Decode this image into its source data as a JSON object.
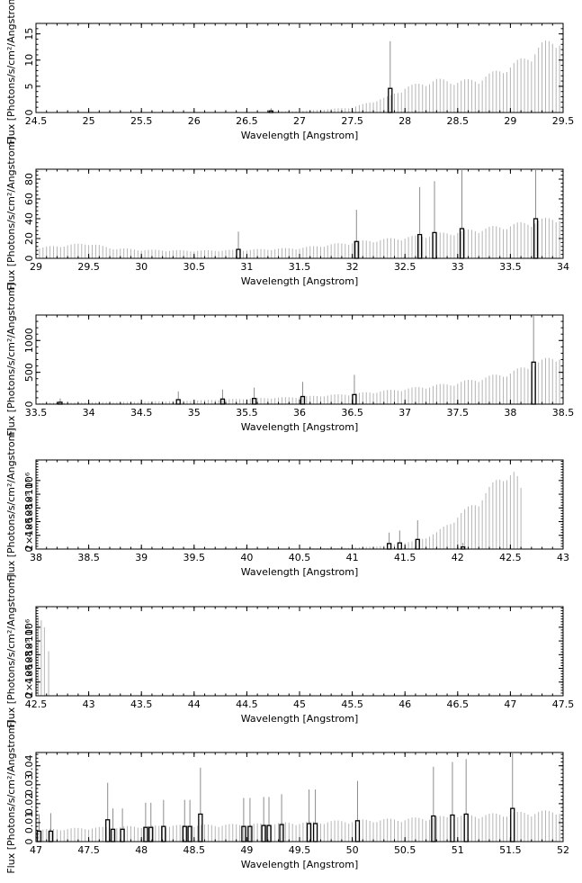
{
  "chart_data": [
    {
      "type": "bar",
      "xlabel": "Wavelength [Angstrom]",
      "ylabel": "Flux [Photons/s/cm²/Angstrom]",
      "xlim": [
        24.5,
        29.5
      ],
      "ylim": [
        0,
        17
      ],
      "xticks": [
        "24.5",
        "25",
        "25.5",
        "26",
        "26.5",
        "27",
        "27.5",
        "28",
        "28.5",
        "29",
        "29.5"
      ],
      "xtick_values": [
        24.5,
        25,
        25.5,
        26,
        26.5,
        27,
        27.5,
        28,
        28.5,
        29,
        29.5
      ],
      "yticks": [
        "0",
        "5",
        "10",
        "15"
      ],
      "ytick_values": [
        0,
        5,
        10,
        15
      ],
      "background_envelope": [
        [
          24.5,
          0
        ],
        [
          26.5,
          0
        ],
        [
          27.0,
          0.3
        ],
        [
          27.5,
          1.0
        ],
        [
          27.85,
          3.2
        ],
        [
          28.0,
          5.0
        ],
        [
          28.2,
          6.0
        ],
        [
          28.3,
          6.5
        ],
        [
          28.5,
          6.2
        ],
        [
          28.7,
          6.6
        ],
        [
          28.85,
          8.0
        ],
        [
          29.0,
          9.3
        ],
        [
          29.15,
          11.0
        ],
        [
          29.3,
          13.5
        ],
        [
          29.5,
          15.0
        ]
      ],
      "bars": [
        {
          "x": 26.73,
          "y": 0.3,
          "err": 0.5
        },
        {
          "x": 27.86,
          "y": 4.6,
          "err": 9.0
        }
      ]
    },
    {
      "type": "bar",
      "xlabel": "Wavelength [Angstrom]",
      "ylabel": "Flux [Photons/s/cm²/Angstrom]",
      "xlim": [
        29,
        34
      ],
      "ylim": [
        0,
        90
      ],
      "xticks": [
        "29",
        "29.5",
        "30",
        "30.5",
        "31",
        "31.5",
        "32",
        "32.5",
        "33",
        "33.5",
        "34"
      ],
      "xtick_values": [
        29,
        29.5,
        30,
        30.5,
        31,
        31.5,
        32,
        32.5,
        33,
        33.5,
        34
      ],
      "yticks": [
        "0",
        "20",
        "40",
        "60",
        "80"
      ],
      "ytick_values": [
        0,
        20,
        40,
        60,
        80
      ],
      "background_envelope": [
        [
          29.0,
          11
        ],
        [
          29.3,
          14
        ],
        [
          29.5,
          16
        ],
        [
          29.7,
          11
        ],
        [
          30.0,
          9
        ],
        [
          30.5,
          8
        ],
        [
          31.0,
          9
        ],
        [
          31.5,
          11
        ],
        [
          32.0,
          17
        ],
        [
          32.5,
          22
        ],
        [
          33.0,
          28
        ],
        [
          33.5,
          35
        ],
        [
          34.0,
          44
        ]
      ],
      "bars": [
        {
          "x": 30.92,
          "y": 9,
          "err": 18
        },
        {
          "x": 32.04,
          "y": 17,
          "err": 32
        },
        {
          "x": 32.64,
          "y": 24,
          "err": 48
        },
        {
          "x": 32.78,
          "y": 26,
          "err": 52
        },
        {
          "x": 33.04,
          "y": 30,
          "err": 61
        },
        {
          "x": 33.74,
          "y": 40,
          "err": 80
        }
      ]
    },
    {
      "type": "bar",
      "xlabel": "Wavelength [Angstrom]",
      "ylabel": "Flux [Photons/s/cm²/Angstrom]",
      "xlim": [
        33.5,
        38.5
      ],
      "ylim": [
        0,
        1400
      ],
      "xticks": [
        "33.5",
        "34",
        "34.5",
        "35",
        "35.5",
        "36",
        "36.5",
        "37",
        "37.5",
        "38",
        "38.5"
      ],
      "xtick_values": [
        33.5,
        34,
        34.5,
        35,
        35.5,
        36,
        36.5,
        37,
        37.5,
        38,
        38.5
      ],
      "yticks": [
        "0",
        "500",
        "1000"
      ],
      "ytick_values": [
        0,
        500,
        1000
      ],
      "background_envelope": [
        [
          33.5,
          20
        ],
        [
          34.0,
          30
        ],
        [
          34.5,
          40
        ],
        [
          35.0,
          60
        ],
        [
          35.5,
          90
        ],
        [
          36.0,
          120
        ],
        [
          36.5,
          170
        ],
        [
          37.0,
          250
        ],
        [
          37.5,
          350
        ],
        [
          38.0,
          520
        ],
        [
          38.5,
          830
        ]
      ],
      "bars": [
        {
          "x": 33.73,
          "y": 30,
          "err": 60
        },
        {
          "x": 34.85,
          "y": 70,
          "err": 130
        },
        {
          "x": 35.27,
          "y": 80,
          "err": 150
        },
        {
          "x": 35.57,
          "y": 90,
          "err": 170
        },
        {
          "x": 36.03,
          "y": 120,
          "err": 230
        },
        {
          "x": 36.52,
          "y": 150,
          "err": 310
        },
        {
          "x": 38.22,
          "y": 660,
          "err": 1320
        }
      ]
    },
    {
      "type": "bar",
      "xlabel": "Wavelength [Angstrom]",
      "ylabel": "Flux [Photons/s/cm²/Angstrom]",
      "xlim": [
        38,
        43
      ],
      "ylim": [
        0,
        1300000
      ],
      "xticks": [
        "38",
        "38.5",
        "39",
        "39.5",
        "40",
        "40.5",
        "41",
        "41.5",
        "42",
        "42.5",
        "43"
      ],
      "xtick_values": [
        38,
        38.5,
        39,
        39.5,
        40,
        40.5,
        41,
        41.5,
        42,
        42.5,
        43
      ],
      "yticks": [
        "0",
        "2×10⁵",
        "4×10⁵",
        "6×10⁵",
        "8×10⁵",
        "10⁶"
      ],
      "ytick_values": [
        0,
        200000,
        400000,
        600000,
        800000,
        1000000
      ],
      "background_envelope": [
        [
          38.0,
          1000
        ],
        [
          40.0,
          3000
        ],
        [
          40.5,
          8000
        ],
        [
          41.0,
          20000
        ],
        [
          41.3,
          50000
        ],
        [
          41.6,
          120000
        ],
        [
          41.8,
          250000
        ],
        [
          42.0,
          500000
        ],
        [
          42.2,
          750000
        ],
        [
          42.35,
          1000000
        ],
        [
          42.45,
          1180000
        ],
        [
          42.55,
          1150000
        ],
        [
          42.6,
          900000
        ]
      ],
      "bars": [
        {
          "x": 41.35,
          "y": 80000,
          "err": 160000
        },
        {
          "x": 41.45,
          "y": 90000,
          "err": 180000
        },
        {
          "x": 41.62,
          "y": 140000,
          "err": 280000
        },
        {
          "x": 42.05,
          "y": 30000,
          "err": 60000
        }
      ]
    },
    {
      "type": "bar",
      "xlabel": "Wavelength [Angstrom]",
      "ylabel": "Flux [Photons/s/cm²/Angstrom]",
      "xlim": [
        42.5,
        47.5
      ],
      "ylim": [
        0,
        1300000
      ],
      "xticks": [
        "42.5",
        "43",
        "43.5",
        "44",
        "44.5",
        "45",
        "45.5",
        "46",
        "46.5",
        "47",
        "47.5"
      ],
      "xtick_values": [
        42.5,
        43,
        43.5,
        44,
        44.5,
        45,
        45.5,
        46,
        46.5,
        47,
        47.5
      ],
      "yticks": [
        "0",
        "2×10⁵",
        "4×10⁵",
        "6×10⁵",
        "8×10⁵",
        "10⁶"
      ],
      "ytick_values": [
        0,
        200000,
        400000,
        600000,
        800000,
        1000000
      ],
      "background_envelope": [],
      "spikes": [
        {
          "x": 42.52,
          "y": 1150000
        },
        {
          "x": 42.55,
          "y": 1100000
        },
        {
          "x": 42.58,
          "y": 1000000
        },
        {
          "x": 42.62,
          "y": 650000
        }
      ],
      "bars": []
    },
    {
      "type": "bar",
      "xlabel": "Wavelength [Angstrom]",
      "ylabel": "Flux [Photons/s/cm²/Angstrom]",
      "xlim": [
        47,
        52
      ],
      "ylim": [
        0,
        0.047
      ],
      "xticks": [
        "47",
        "47.5",
        "48",
        "48.5",
        "49",
        "49.5",
        "50",
        "50.5",
        "51",
        "51.5",
        "52"
      ],
      "xtick_values": [
        47,
        47.5,
        48,
        48.5,
        49,
        49.5,
        50,
        50.5,
        51,
        51.5,
        52
      ],
      "yticks": [
        "0",
        "0.01",
        "0.02",
        "0.03",
        "0.04"
      ],
      "ytick_values": [
        0,
        0.01,
        0.02,
        0.03,
        0.04
      ],
      "background_envelope": [
        [
          47.0,
          0.0065
        ],
        [
          47.5,
          0.0075
        ],
        [
          48.0,
          0.0085
        ],
        [
          48.5,
          0.009
        ],
        [
          49.0,
          0.0095
        ],
        [
          49.5,
          0.0105
        ],
        [
          50.0,
          0.0115
        ],
        [
          50.5,
          0.0125
        ],
        [
          51.0,
          0.014
        ],
        [
          51.5,
          0.0155
        ],
        [
          52.0,
          0.017
        ]
      ],
      "bars": [
        {
          "x": 47.03,
          "y": 0.0055,
          "err": 0.009
        },
        {
          "x": 47.14,
          "y": 0.0055,
          "err": 0.0095
        },
        {
          "x": 47.68,
          "y": 0.0115,
          "err": 0.0195
        },
        {
          "x": 47.73,
          "y": 0.0065,
          "err": 0.011
        },
        {
          "x": 47.82,
          "y": 0.0065,
          "err": 0.011
        },
        {
          "x": 48.04,
          "y": 0.0075,
          "err": 0.013
        },
        {
          "x": 48.09,
          "y": 0.0075,
          "err": 0.013
        },
        {
          "x": 48.21,
          "y": 0.008,
          "err": 0.014
        },
        {
          "x": 48.41,
          "y": 0.008,
          "err": 0.014
        },
        {
          "x": 48.46,
          "y": 0.008,
          "err": 0.014
        },
        {
          "x": 48.56,
          "y": 0.0145,
          "err": 0.0245
        },
        {
          "x": 48.97,
          "y": 0.008,
          "err": 0.015
        },
        {
          "x": 49.03,
          "y": 0.008,
          "err": 0.015
        },
        {
          "x": 49.16,
          "y": 0.0085,
          "err": 0.015
        },
        {
          "x": 49.21,
          "y": 0.0085,
          "err": 0.015
        },
        {
          "x": 49.33,
          "y": 0.009,
          "err": 0.016
        },
        {
          "x": 49.59,
          "y": 0.0095,
          "err": 0.018
        },
        {
          "x": 49.65,
          "y": 0.0095,
          "err": 0.018
        },
        {
          "x": 50.05,
          "y": 0.011,
          "err": 0.021
        },
        {
          "x": 50.77,
          "y": 0.0135,
          "err": 0.026
        },
        {
          "x": 50.95,
          "y": 0.014,
          "err": 0.028
        },
        {
          "x": 51.08,
          "y": 0.0145,
          "err": 0.029
        },
        {
          "x": 51.52,
          "y": 0.0175,
          "err": 0.0355
        }
      ]
    }
  ]
}
